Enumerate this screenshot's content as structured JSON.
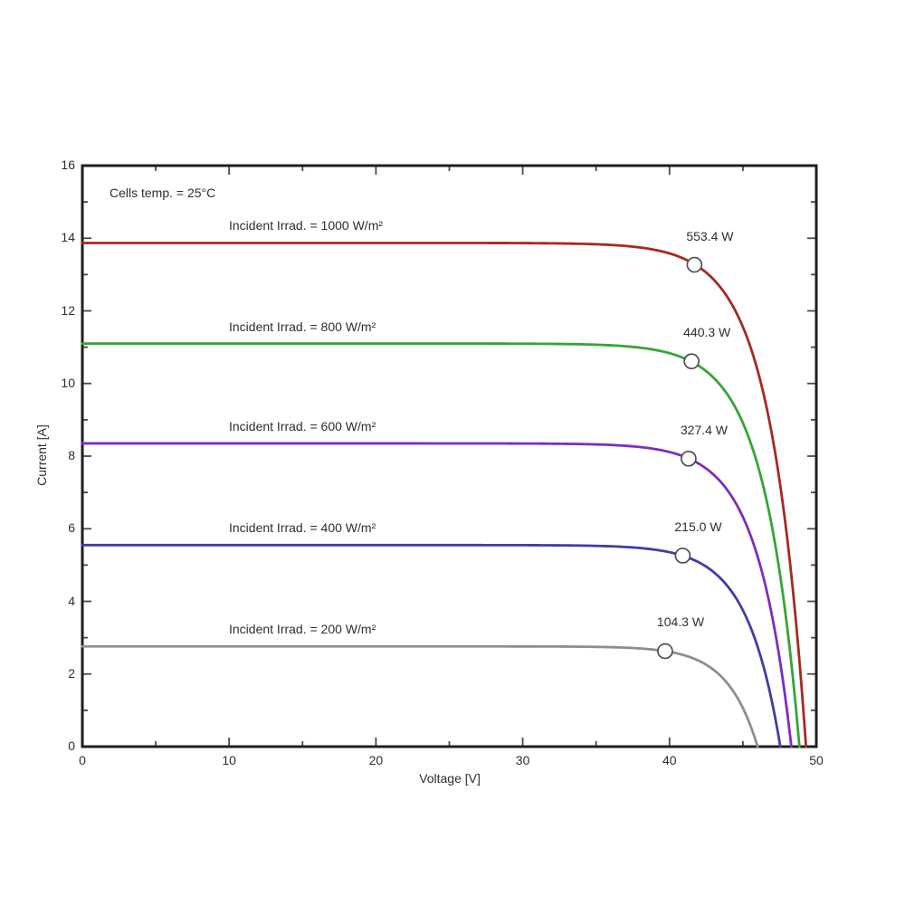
{
  "page": {
    "background_color": "#ffffff",
    "frame_color": "#1f1f1f",
    "tick_color": "#4a4a4a",
    "text_color": "#2e2e2e"
  },
  "chart_data": {
    "type": "line",
    "title": "",
    "xlabel": "Voltage [V]",
    "ylabel": "Current [A]",
    "annotation": "Cells temp. = 25°C",
    "xlim": [
      0,
      50
    ],
    "ylim": [
      0,
      16
    ],
    "x_major_ticks": [
      0,
      10,
      20,
      30,
      40,
      50
    ],
    "x_minor_ticks": [
      5,
      15,
      25,
      35,
      45
    ],
    "y_major_ticks": [
      0,
      2,
      4,
      6,
      8,
      10,
      12,
      14,
      16
    ],
    "y_minor_ticks": [
      1,
      3,
      5,
      7,
      9,
      11,
      13,
      15
    ],
    "grid": false,
    "box": true,
    "legend_position": "inline-labels-above-curves",
    "marker_style": {
      "fill": "#ffffff",
      "stroke": "#4f4f4f"
    },
    "series": [
      {
        "name": "irr-1000",
        "label": "Incident Irrad. = 1000 W/m²",
        "color": "#a42a22",
        "isc_A": 13.87,
        "voc_V": 49.3,
        "knee_a": 2.4,
        "mpp": {
          "v_V": 41.7,
          "i_A": 13.27,
          "power_label": "553.4 W"
        }
      },
      {
        "name": "irr-800",
        "label": "Incident Irrad. = 800 W/m²",
        "color": "#36a436",
        "isc_A": 11.1,
        "voc_V": 48.85,
        "knee_a": 2.37,
        "mpp": {
          "v_V": 41.5,
          "i_A": 10.61,
          "power_label": "440.3 W"
        }
      },
      {
        "name": "irr-600",
        "label": "Incident Irrad. = 600 W/m²",
        "color": "#7c2ebe",
        "isc_A": 8.35,
        "voc_V": 48.3,
        "knee_a": 2.33,
        "mpp": {
          "v_V": 41.3,
          "i_A": 7.93,
          "power_label": "327.4 W"
        }
      },
      {
        "name": "irr-400",
        "label": "Incident Irrad. = 400 W/m²",
        "color": "#403da3",
        "isc_A": 5.55,
        "voc_V": 47.55,
        "knee_a": 2.26,
        "mpp": {
          "v_V": 40.9,
          "i_A": 5.26,
          "power_label": "215.0 W"
        }
      },
      {
        "name": "irr-200",
        "label": "Incident Irrad. = 200 W/m²",
        "color": "#8e8e8e",
        "isc_A": 2.76,
        "voc_V": 46.0,
        "knee_a": 2.06,
        "mpp": {
          "v_V": 39.7,
          "i_A": 2.63,
          "power_label": "104.3 W"
        }
      }
    ]
  }
}
